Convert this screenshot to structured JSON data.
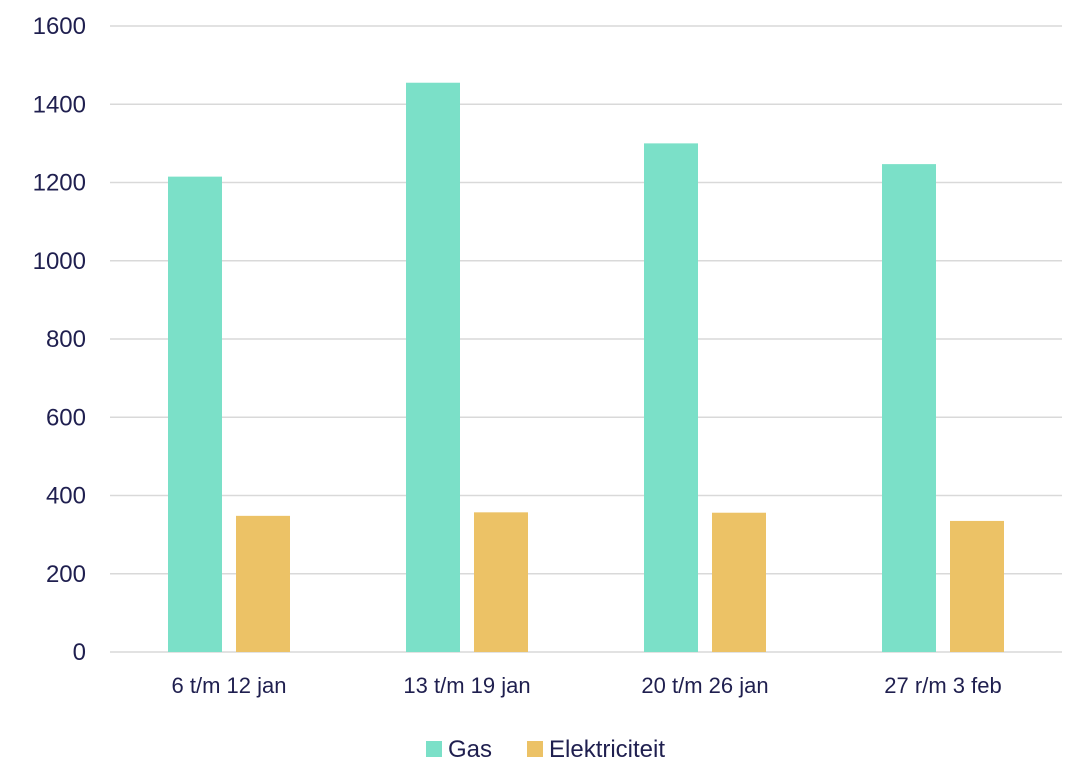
{
  "chart_data": {
    "type": "bar",
    "categories": [
      "6 t/m 12 jan",
      "13 t/m 19 jan",
      "20 t/m 26 jan",
      "27 r/m 3 feb"
    ],
    "series": [
      {
        "name": "Gas",
        "values": [
          1215,
          1455,
          1300,
          1247
        ],
        "color": "#7be0c8"
      },
      {
        "name": "Elektriciteit",
        "values": [
          348,
          357,
          356,
          335
        ],
        "color": "#ecc266"
      }
    ],
    "ylim": [
      0,
      1600
    ],
    "yticks": [
      "0",
      "200",
      "400",
      "600",
      "800",
      "1000",
      "1200",
      "1400",
      "1600"
    ],
    "grid": true,
    "legend": "bottom",
    "title": "",
    "xlabel": "",
    "ylabel": ""
  }
}
